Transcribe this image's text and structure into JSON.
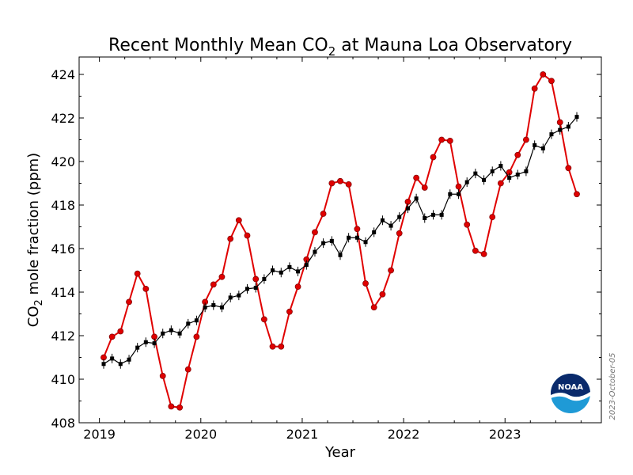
{
  "chart_data": {
    "type": "line",
    "title_parts": {
      "pre": "Recent Monthly Mean CO",
      "sub": "2",
      "post": " at Mauna Loa Observatory"
    },
    "xlabel": "Year",
    "ylabel_parts": {
      "pre": "CO",
      "sub": "2",
      "post": " mole fraction (ppm)"
    },
    "xlim": [
      2018.8,
      2023.95
    ],
    "ylim": [
      408,
      424.8
    ],
    "xticks": [
      2019,
      2020,
      2021,
      2022,
      2023
    ],
    "yticks": [
      408,
      410,
      412,
      414,
      416,
      418,
      420,
      422,
      424
    ],
    "grid": false,
    "series": [
      {
        "style": "monthly-mean",
        "color": "#e00000",
        "marker": "circle",
        "x": [
          2019.042,
          2019.125,
          2019.208,
          2019.292,
          2019.375,
          2019.458,
          2019.542,
          2019.625,
          2019.708,
          2019.792,
          2019.875,
          2019.958,
          2020.042,
          2020.125,
          2020.208,
          2020.292,
          2020.375,
          2020.458,
          2020.542,
          2020.625,
          2020.708,
          2020.792,
          2020.875,
          2020.958,
          2021.042,
          2021.125,
          2021.208,
          2021.292,
          2021.375,
          2021.458,
          2021.542,
          2021.625,
          2021.708,
          2021.792,
          2021.875,
          2021.958,
          2022.042,
          2022.125,
          2022.208,
          2022.292,
          2022.375,
          2022.458,
          2022.542,
          2022.625,
          2022.708,
          2022.792,
          2022.875,
          2022.958,
          2023.042,
          2023.125,
          2023.208,
          2023.292,
          2023.375,
          2023.458,
          2023.542,
          2023.625,
          2023.708
        ],
        "values": [
          411.0,
          411.95,
          412.2,
          413.55,
          414.85,
          414.15,
          411.95,
          410.15,
          408.75,
          408.7,
          410.45,
          411.95,
          413.55,
          414.35,
          414.7,
          416.45,
          417.3,
          416.6,
          414.6,
          412.75,
          411.5,
          411.5,
          413.1,
          414.25,
          415.5,
          416.75,
          417.6,
          419.0,
          419.1,
          418.95,
          416.9,
          414.4,
          413.3,
          413.9,
          415.0,
          416.7,
          418.15,
          419.25,
          418.8,
          420.2,
          421.0,
          420.95,
          418.85,
          417.1,
          415.9,
          415.75,
          417.45,
          419.0,
          419.5,
          420.3,
          421.0,
          423.35,
          424.0,
          423.7,
          421.8,
          419.7,
          418.5
        ]
      },
      {
        "style": "seasonally-corrected",
        "color": "#000000",
        "marker": "square",
        "x": [
          2019.042,
          2019.125,
          2019.208,
          2019.292,
          2019.375,
          2019.458,
          2019.542,
          2019.625,
          2019.708,
          2019.792,
          2019.875,
          2019.958,
          2020.042,
          2020.125,
          2020.208,
          2020.292,
          2020.375,
          2020.458,
          2020.542,
          2020.625,
          2020.708,
          2020.792,
          2020.875,
          2020.958,
          2021.042,
          2021.125,
          2021.208,
          2021.292,
          2021.375,
          2021.458,
          2021.542,
          2021.625,
          2021.708,
          2021.792,
          2021.875,
          2021.958,
          2022.042,
          2022.125,
          2022.208,
          2022.292,
          2022.375,
          2022.458,
          2022.542,
          2022.625,
          2022.708,
          2022.792,
          2022.875,
          2022.958,
          2023.042,
          2023.125,
          2023.208,
          2023.292,
          2023.375,
          2023.458,
          2023.542,
          2023.625,
          2023.708
        ],
        "values": [
          410.7,
          410.95,
          410.7,
          410.9,
          411.45,
          411.7,
          411.65,
          412.1,
          412.25,
          412.1,
          412.55,
          412.7,
          413.3,
          413.4,
          413.3,
          413.75,
          413.85,
          414.15,
          414.2,
          414.6,
          415.0,
          414.9,
          415.15,
          414.95,
          415.25,
          415.85,
          416.25,
          416.35,
          415.7,
          416.5,
          416.5,
          416.3,
          416.75,
          417.3,
          417.05,
          417.45,
          417.85,
          418.3,
          417.4,
          417.55,
          417.55,
          418.5,
          418.5,
          419.05,
          419.45,
          419.15,
          419.55,
          419.8,
          419.25,
          419.4,
          419.55,
          420.75,
          420.6,
          421.25,
          421.45,
          421.6,
          422.05
        ]
      }
    ]
  },
  "date_stamp": "2023-October-05",
  "logo": {
    "text": "NOAA"
  }
}
